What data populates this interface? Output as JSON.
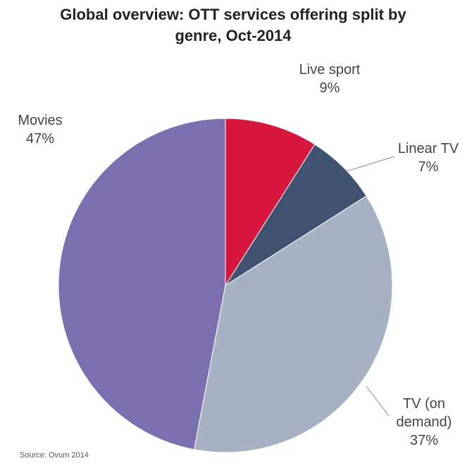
{
  "chart_data": {
    "type": "pie",
    "title": "Global overview: OTT services offering split by genre, Oct-2014",
    "categories": [
      "Live sport",
      "Linear TV",
      "TV (on demand)",
      "Movies"
    ],
    "values": [
      9,
      7,
      37,
      47
    ],
    "value_labels": [
      "9%",
      "7%",
      "37%",
      "47%"
    ],
    "colors": [
      "#d8173f",
      "#3f5371",
      "#a6b1c4",
      "#7b6fb0"
    ],
    "source": "Source: Ovum 2014"
  }
}
